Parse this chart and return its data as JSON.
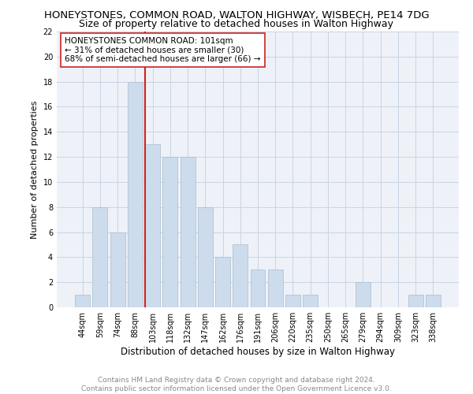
{
  "title1": "HONEYSTONES, COMMON ROAD, WALTON HIGHWAY, WISBECH, PE14 7DG",
  "title2": "Size of property relative to detached houses in Walton Highway",
  "xlabel": "Distribution of detached houses by size in Walton Highway",
  "ylabel": "Number of detached properties",
  "categories": [
    "44sqm",
    "59sqm",
    "74sqm",
    "88sqm",
    "103sqm",
    "118sqm",
    "132sqm",
    "147sqm",
    "162sqm",
    "176sqm",
    "191sqm",
    "206sqm",
    "220sqm",
    "235sqm",
    "250sqm",
    "265sqm",
    "279sqm",
    "294sqm",
    "309sqm",
    "323sqm",
    "338sqm"
  ],
  "values": [
    1,
    8,
    6,
    18,
    13,
    12,
    12,
    8,
    4,
    5,
    3,
    3,
    1,
    1,
    0,
    0,
    2,
    0,
    0,
    1,
    1
  ],
  "bar_color": "#ccdcec",
  "bar_edge_color": "#aabccc",
  "highlight_line_color": "#cc2222",
  "annotation_text": "HONEYSTONES COMMON ROAD: 101sqm\n← 31% of detached houses are smaller (30)\n68% of semi-detached houses are larger (66) →",
  "annotation_box_color": "#ffffff",
  "annotation_box_edge_color": "#cc2222",
  "ylim": [
    0,
    22
  ],
  "yticks": [
    0,
    2,
    4,
    6,
    8,
    10,
    12,
    14,
    16,
    18,
    20,
    22
  ],
  "grid_color": "#c8d4e4",
  "background_color": "#eef2f8",
  "footer_text": "Contains HM Land Registry data © Crown copyright and database right 2024.\nContains public sector information licensed under the Open Government Licence v3.0.",
  "title1_fontsize": 9.5,
  "title2_fontsize": 9,
  "ylabel_fontsize": 8,
  "xlabel_fontsize": 8.5,
  "tick_fontsize": 7,
  "annotation_fontsize": 7.5,
  "footer_fontsize": 6.5
}
